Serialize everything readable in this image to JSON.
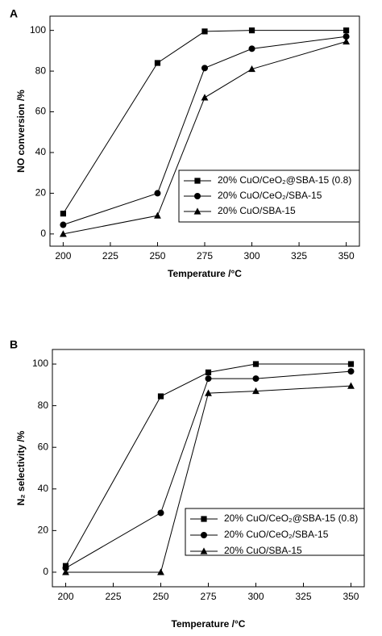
{
  "chart_data": [
    {
      "type": "line",
      "panel_label": "A",
      "x_label": "Temperature /°C",
      "y_label": "NO conversion /%",
      "x": [
        200,
        250,
        275,
        300,
        350
      ],
      "series": [
        {
          "name": "20% CuO/CeO₂@SBA-15 (0.8)",
          "color": "#000000",
          "marker": "square",
          "values": [
            10,
            84,
            99.5,
            100,
            100
          ]
        },
        {
          "name": "20% CuO/CeO₂/SBA-15",
          "color": "#000000",
          "marker": "circle",
          "values": [
            4.5,
            20,
            81.5,
            91,
            97
          ]
        },
        {
          "name": "20% CuO/SBA-15",
          "color": "#000000",
          "marker": "triangle",
          "values": [
            0,
            9,
            67,
            81,
            94.5
          ]
        }
      ],
      "xlim": [
        193,
        357
      ],
      "ylim": [
        -6,
        107
      ],
      "xticks": [
        200,
        225,
        250,
        275,
        300,
        325,
        350
      ],
      "yticks": [
        0,
        20,
        40,
        60,
        80,
        100
      ],
      "legend": "lower right"
    },
    {
      "type": "line",
      "panel_label": "B",
      "x_label": "Temperature /°C",
      "y_label": "N₂ selectivity /%",
      "x": [
        200,
        250,
        275,
        300,
        350
      ],
      "series": [
        {
          "name": "20% CuO/CeO₂@SBA-15 (0.8)",
          "color": "#000000",
          "marker": "square",
          "values": [
            3,
            84.5,
            96,
            100,
            100
          ]
        },
        {
          "name": "20% CuO/CeO₂/SBA-15",
          "color": "#000000",
          "marker": "circle",
          "values": [
            2,
            28.5,
            93,
            93,
            96.5
          ]
        },
        {
          "name": "20% CuO/SBA-15",
          "color": "#000000",
          "marker": "triangle",
          "values": [
            0,
            0,
            86,
            87,
            89.5
          ]
        }
      ],
      "xlim": [
        193,
        357
      ],
      "ylim": [
        -7,
        107
      ],
      "xticks": [
        200,
        225,
        250,
        275,
        300,
        325,
        350
      ],
      "yticks": [
        0,
        20,
        40,
        60,
        80,
        100
      ],
      "legend": "lower right"
    }
  ]
}
